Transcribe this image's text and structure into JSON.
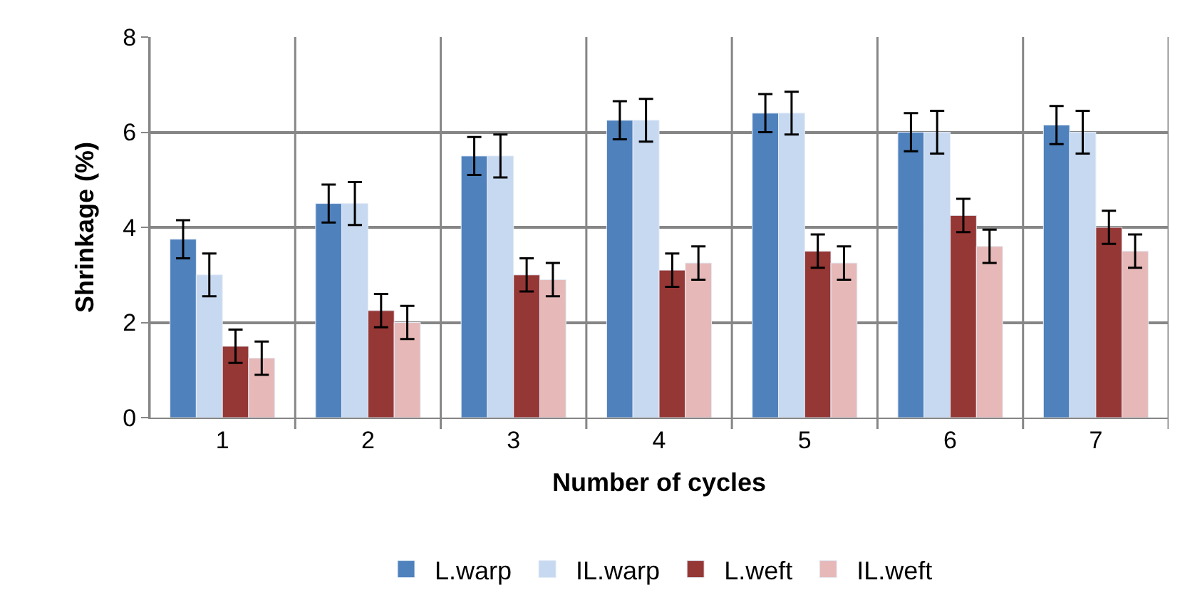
{
  "chart_data": {
    "type": "bar",
    "xlabel": "Number of cycles",
    "ylabel": "Shrinkage (%)",
    "categories": [
      "1",
      "2",
      "3",
      "4",
      "5",
      "6",
      "7"
    ],
    "series": [
      {
        "name": "L.warp",
        "color": "#4f81bd",
        "values": [
          3.75,
          4.5,
          5.5,
          6.25,
          6.4,
          6.0,
          6.15
        ],
        "errors": [
          0.4,
          0.4,
          0.4,
          0.4,
          0.4,
          0.4,
          0.4
        ]
      },
      {
        "name": "IL.warp",
        "color": "#c6d9f0",
        "values": [
          3.0,
          4.5,
          5.5,
          6.25,
          6.4,
          6.0,
          6.0
        ],
        "errors": [
          0.45,
          0.45,
          0.45,
          0.45,
          0.45,
          0.45,
          0.45
        ]
      },
      {
        "name": "L.weft",
        "color": "#953735",
        "values": [
          1.5,
          2.25,
          3.0,
          3.1,
          3.5,
          4.25,
          4.0
        ],
        "errors": [
          0.35,
          0.35,
          0.35,
          0.35,
          0.35,
          0.35,
          0.35
        ]
      },
      {
        "name": "IL.weft",
        "color": "#e6b9b8",
        "values": [
          1.25,
          2.0,
          2.9,
          3.25,
          3.25,
          3.6,
          3.5
        ],
        "errors": [
          0.35,
          0.35,
          0.35,
          0.35,
          0.35,
          0.35,
          0.35
        ]
      }
    ],
    "ylim": [
      0,
      8
    ],
    "yticks": [
      0,
      2,
      4,
      6,
      8
    ],
    "grid": true,
    "legend": "bottom"
  }
}
